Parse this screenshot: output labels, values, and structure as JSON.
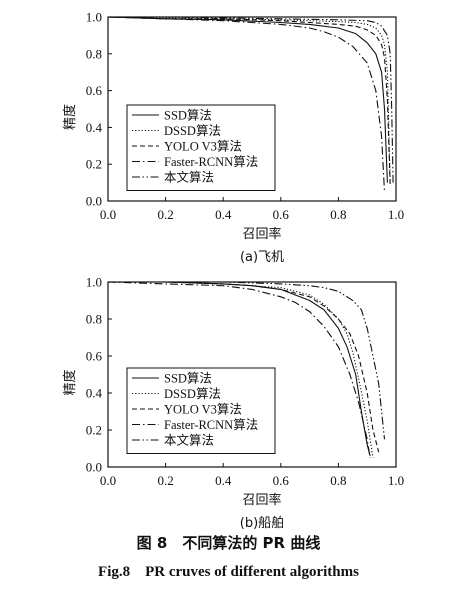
{
  "figure": {
    "caption_cn": "图 8　不同算法的 PR 曲线",
    "caption_en": "Fig.8　PR cruves of different algorithms"
  },
  "chart_data": [
    {
      "type": "line",
      "subtitle": "(a)飞机",
      "xlabel": "召回率",
      "ylabel": "精度",
      "xlim": [
        0,
        1.0
      ],
      "ylim": [
        0,
        1.0
      ],
      "xticks": [
        "0.0",
        "0.2",
        "0.4",
        "0.6",
        "0.8",
        "1.0"
      ],
      "yticks": [
        "0.0",
        "0.2",
        "0.4",
        "0.6",
        "0.8",
        "1.0"
      ],
      "grid": false,
      "legend_position": "lower-left",
      "series": [
        {
          "name": "SSD算法",
          "style": "solid",
          "x": [
            0.0,
            0.2,
            0.4,
            0.6,
            0.7,
            0.8,
            0.86,
            0.9,
            0.93,
            0.95,
            0.96,
            0.97
          ],
          "y": [
            1.0,
            0.99,
            0.985,
            0.97,
            0.96,
            0.94,
            0.91,
            0.86,
            0.8,
            0.7,
            0.5,
            0.1
          ]
        },
        {
          "name": "DSSD算法",
          "style": "dotted",
          "x": [
            0.0,
            0.2,
            0.4,
            0.6,
            0.7,
            0.8,
            0.86,
            0.9,
            0.93,
            0.95,
            0.96,
            0.97,
            0.98
          ],
          "y": [
            1.0,
            0.995,
            0.99,
            0.985,
            0.98,
            0.975,
            0.97,
            0.96,
            0.94,
            0.9,
            0.85,
            0.7,
            0.1
          ]
        },
        {
          "name": "YOLO V3算法",
          "style": "dashed",
          "x": [
            0.0,
            0.2,
            0.4,
            0.6,
            0.7,
            0.8,
            0.86,
            0.9,
            0.93,
            0.95,
            0.96,
            0.97,
            0.98
          ],
          "y": [
            1.0,
            0.99,
            0.99,
            0.98,
            0.97,
            0.96,
            0.95,
            0.93,
            0.9,
            0.85,
            0.78,
            0.55,
            0.08
          ]
        },
        {
          "name": "Faster-RCNN算法",
          "style": "dashdot",
          "x": [
            0.0,
            0.2,
            0.4,
            0.6,
            0.7,
            0.75,
            0.8,
            0.85,
            0.9,
            0.93,
            0.95,
            0.96
          ],
          "y": [
            1.0,
            0.99,
            0.98,
            0.96,
            0.94,
            0.92,
            0.89,
            0.84,
            0.75,
            0.6,
            0.35,
            0.05
          ]
        },
        {
          "name": "本文算法",
          "style": "dashdotdot",
          "x": [
            0.0,
            0.2,
            0.4,
            0.6,
            0.8,
            0.9,
            0.93,
            0.95,
            0.97,
            0.98,
            0.985,
            0.99
          ],
          "y": [
            1.0,
            1.0,
            0.995,
            0.99,
            0.985,
            0.98,
            0.97,
            0.95,
            0.9,
            0.8,
            0.5,
            0.1
          ]
        }
      ]
    },
    {
      "type": "line",
      "subtitle": "(b)船舶",
      "xlabel": "召回率",
      "ylabel": "精度",
      "xlim": [
        0,
        1.0
      ],
      "ylim": [
        0,
        1.0
      ],
      "xticks": [
        "0.0",
        "0.2",
        "0.4",
        "0.6",
        "0.8",
        "1.0"
      ],
      "yticks": [
        "0.0",
        "0.2",
        "0.4",
        "0.6",
        "0.8",
        "1.0"
      ],
      "grid": false,
      "legend_position": "lower-left",
      "series": [
        {
          "name": "SSD算法",
          "style": "solid",
          "x": [
            0.0,
            0.2,
            0.4,
            0.5,
            0.6,
            0.7,
            0.75,
            0.8,
            0.83,
            0.86,
            0.88,
            0.9,
            0.91
          ],
          "y": [
            1.0,
            1.0,
            0.99,
            0.98,
            0.96,
            0.9,
            0.85,
            0.75,
            0.65,
            0.5,
            0.3,
            0.12,
            0.06
          ]
        },
        {
          "name": "DSSD算法",
          "style": "dotted",
          "x": [
            0.0,
            0.2,
            0.4,
            0.5,
            0.6,
            0.7,
            0.75,
            0.8,
            0.83,
            0.85,
            0.87,
            0.9,
            0.92
          ],
          "y": [
            1.0,
            1.0,
            0.99,
            0.98,
            0.97,
            0.93,
            0.88,
            0.8,
            0.72,
            0.62,
            0.48,
            0.25,
            0.05
          ]
        },
        {
          "name": "YOLO V3算法",
          "style": "dashed",
          "x": [
            0.0,
            0.2,
            0.4,
            0.5,
            0.6,
            0.7,
            0.75,
            0.8,
            0.84,
            0.87,
            0.9,
            0.92,
            0.94
          ],
          "y": [
            1.0,
            1.0,
            0.99,
            0.98,
            0.96,
            0.92,
            0.87,
            0.8,
            0.72,
            0.6,
            0.4,
            0.2,
            0.08
          ]
        },
        {
          "name": "Faster-RCNN算法",
          "style": "dashdot",
          "x": [
            0.0,
            0.2,
            0.4,
            0.5,
            0.6,
            0.65,
            0.7,
            0.75,
            0.8,
            0.84,
            0.87,
            0.9,
            0.91
          ],
          "y": [
            1.0,
            0.99,
            0.98,
            0.96,
            0.92,
            0.89,
            0.84,
            0.76,
            0.65,
            0.5,
            0.35,
            0.15,
            0.05
          ]
        },
        {
          "name": "本文算法",
          "style": "dashdotdot",
          "x": [
            0.0,
            0.2,
            0.4,
            0.6,
            0.7,
            0.75,
            0.8,
            0.85,
            0.88,
            0.9,
            0.92,
            0.94,
            0.95,
            0.96
          ],
          "y": [
            1.0,
            1.0,
            1.0,
            0.99,
            0.98,
            0.97,
            0.95,
            0.9,
            0.85,
            0.75,
            0.6,
            0.45,
            0.3,
            0.15
          ]
        }
      ]
    }
  ]
}
